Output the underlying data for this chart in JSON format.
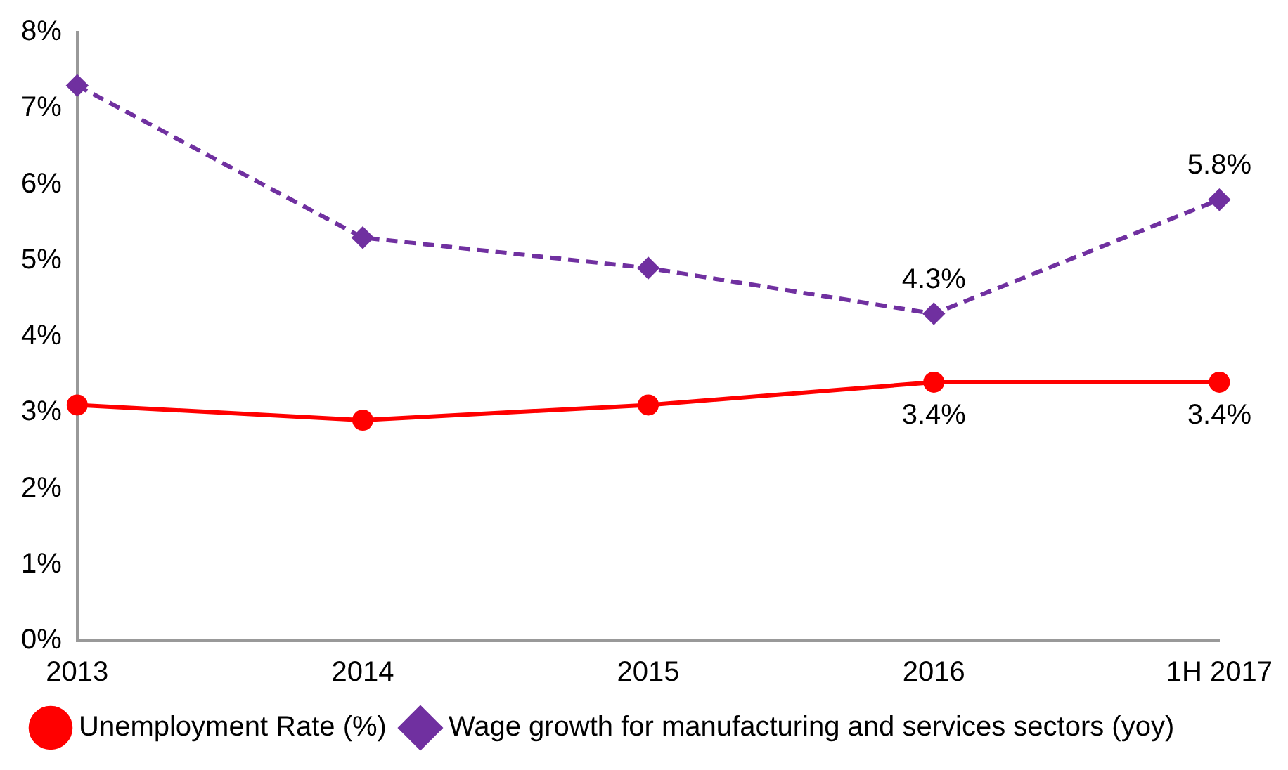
{
  "chart_data": {
    "type": "line",
    "categories": [
      "2013",
      "2014",
      "2015",
      "2016",
      "1H 2017"
    ],
    "series": [
      {
        "name": "Unemployment Rate (%)",
        "color": "#ff0000",
        "values": [
          3.1,
          2.9,
          3.1,
          3.4,
          3.4
        ],
        "marker": "circle",
        "line_style": "solid",
        "value_labels": [
          null,
          null,
          null,
          "3.4%",
          "3.4%"
        ]
      },
      {
        "name": "Wage growth for manufacturing and services sectors (yoy)",
        "color": "#7030a0",
        "values": [
          7.3,
          5.3,
          4.9,
          4.3,
          5.8
        ],
        "marker": "diamond",
        "line_style": "dashed",
        "value_labels": [
          null,
          null,
          null,
          "4.3%",
          "5.8%"
        ]
      }
    ],
    "ylim": [
      0,
      8
    ],
    "yticks": [
      {
        "value": 0,
        "label": "0%"
      },
      {
        "value": 1,
        "label": "1%"
      },
      {
        "value": 2,
        "label": "2%"
      },
      {
        "value": 3,
        "label": "3%"
      },
      {
        "value": 4,
        "label": "4%"
      },
      {
        "value": 5,
        "label": "5%"
      },
      {
        "value": 6,
        "label": "6%"
      },
      {
        "value": 7,
        "label": "7%"
      },
      {
        "value": 8,
        "label": "8%"
      }
    ],
    "grid": false,
    "legend": "bottom"
  }
}
